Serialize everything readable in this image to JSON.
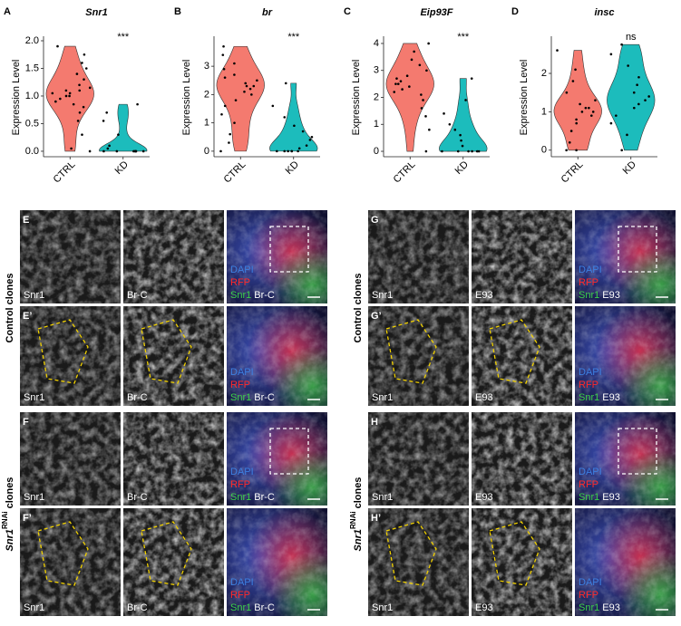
{
  "chart_data": [
    {
      "type": "violin",
      "panel": "A",
      "title": "Snr1",
      "y_label": "Expression Level",
      "annotation": "***",
      "categories": [
        "CTRL",
        "KD"
      ],
      "series": [
        {
          "name": "CTRL",
          "color": "#f47a6f",
          "values": [
            0,
            0.05,
            0.3,
            0.55,
            0.7,
            0.8,
            0.85,
            0.9,
            0.95,
            1.0,
            1.0,
            1.05,
            1.05,
            1.1,
            1.1,
            1.15,
            1.2,
            1.3,
            1.4,
            1.5,
            1.6,
            1.75,
            1.9
          ]
        },
        {
          "name": "KD",
          "color": "#1cbcbc",
          "values": [
            0,
            0,
            0,
            0,
            0,
            0,
            0,
            0.05,
            0.1,
            0.3,
            0.55,
            0.7,
            0.85
          ]
        }
      ],
      "ylim": [
        -0.05,
        2.0
      ],
      "yticks": [
        {
          "value": 0,
          "label": "0.0"
        },
        {
          "value": 0.5,
          "label": "0.5"
        },
        {
          "value": 1,
          "label": "1.0"
        },
        {
          "value": 1.5,
          "label": "1.5"
        },
        {
          "value": 2,
          "label": "2.0"
        }
      ]
    },
    {
      "type": "violin",
      "panel": "B",
      "title": "br",
      "y_label": "Expression Level",
      "annotation": "***",
      "categories": [
        "CTRL",
        "KD"
      ],
      "series": [
        {
          "name": "CTRL",
          "color": "#f47a6f",
          "values": [
            0,
            0.3,
            0.6,
            1.0,
            1.3,
            1.6,
            1.8,
            2.0,
            2.1,
            2.2,
            2.3,
            2.3,
            2.4,
            2.5,
            2.6,
            2.7,
            2.9,
            3.1,
            3.4,
            3.7
          ]
        },
        {
          "name": "KD",
          "color": "#1cbcbc",
          "values": [
            0,
            0,
            0,
            0,
            0,
            0,
            0.1,
            0.2,
            0.4,
            0.5,
            0.7,
            0.9,
            1.2,
            1.6,
            2.4
          ]
        }
      ],
      "ylim": [
        -0.1,
        3.9
      ],
      "yticks": [
        0,
        1,
        2,
        3
      ]
    },
    {
      "type": "violin",
      "panel": "C",
      "title": "Eip93F",
      "y_label": "Expression Level",
      "annotation": "***",
      "categories": [
        "CTRL",
        "KD"
      ],
      "series": [
        {
          "name": "CTRL",
          "color": "#f47a6f",
          "values": [
            0,
            0.8,
            1.3,
            1.6,
            1.9,
            2.1,
            2.2,
            2.3,
            2.4,
            2.5,
            2.5,
            2.6,
            2.7,
            2.8,
            3.0,
            3.2,
            3.4,
            3.7,
            4.0
          ]
        },
        {
          "name": "KD",
          "color": "#1cbcbc",
          "values": [
            0,
            0,
            0,
            0,
            0,
            0,
            0.2,
            0.4,
            0.6,
            0.8,
            1.0,
            1.4,
            1.9,
            2.7
          ]
        }
      ],
      "ylim": [
        -0.1,
        4.1
      ],
      "yticks": [
        0,
        1,
        2,
        3,
        4
      ]
    },
    {
      "type": "violin",
      "panel": "D",
      "title": "insc",
      "y_label": "Expression Level",
      "annotation": "ns",
      "categories": [
        "CTRL",
        "KD"
      ],
      "series": [
        {
          "name": "CTRL",
          "color": "#f47a6f",
          "values": [
            0,
            0,
            0.2,
            0.5,
            0.7,
            0.8,
            0.9,
            1.0,
            1.0,
            1.1,
            1.1,
            1.2,
            1.3,
            1.5,
            1.8,
            2.1,
            2.6
          ]
        },
        {
          "name": "KD",
          "color": "#1cbcbc",
          "values": [
            0,
            0.4,
            0.7,
            0.9,
            1.1,
            1.2,
            1.3,
            1.4,
            1.5,
            1.7,
            1.9,
            2.2,
            2.5,
            2.75
          ]
        }
      ],
      "ylim": [
        -0.1,
        2.85
      ],
      "yticks": [
        0,
        1,
        2
      ]
    }
  ],
  "figure": {
    "blocks": [
      {
        "groups": [
          {
            "text": "Control clones"
          },
          {
            "gene": "Snr1",
            "sup": "RNAi",
            "text": "clones"
          }
        ],
        "rows": [
          {
            "letter": "E",
            "captions": [
              "Snr1",
              "Br-C"
            ],
            "merge": [
              "DAPI",
              "RFP",
              "Snr1",
              "Br-C"
            ]
          },
          {
            "letter": "E’",
            "captions": [
              "Snr1",
              "Br-C"
            ],
            "merge": [
              "DAPI",
              "RFP",
              "Snr1",
              "Br-C"
            ]
          },
          {
            "letter": "F",
            "captions": [
              "Snr1",
              "Br-C"
            ],
            "merge": [
              "DAPI",
              "RFP",
              "Snr1",
              "Br-C"
            ]
          },
          {
            "letter": "F’",
            "captions": [
              "Snr1",
              "Br-C"
            ],
            "merge": [
              "DAPI",
              "RFP",
              "Snr1",
              "Br-C"
            ]
          }
        ]
      },
      {
        "groups": [
          {
            "text": "Control clones"
          },
          {
            "gene": "Snr1",
            "sup": "RNAi",
            "text": "clones"
          }
        ],
        "rows": [
          {
            "letter": "G",
            "captions": [
              "Snr1",
              "E93"
            ],
            "merge": [
              "DAPI",
              "RFP",
              "Snr1",
              "E93"
            ]
          },
          {
            "letter": "G’",
            "captions": [
              "Snr1",
              "E93"
            ],
            "merge": [
              "DAPI",
              "RFP",
              "Snr1",
              "E93"
            ]
          },
          {
            "letter": "H",
            "captions": [
              "Snr1",
              "E93"
            ],
            "merge": [
              "DAPI",
              "RFP",
              "Snr1",
              "E93"
            ]
          },
          {
            "letter": "H’",
            "captions": [
              "Snr1",
              "E93"
            ],
            "merge": [
              "DAPI",
              "RFP",
              "Snr1",
              "E93"
            ]
          }
        ]
      }
    ]
  }
}
